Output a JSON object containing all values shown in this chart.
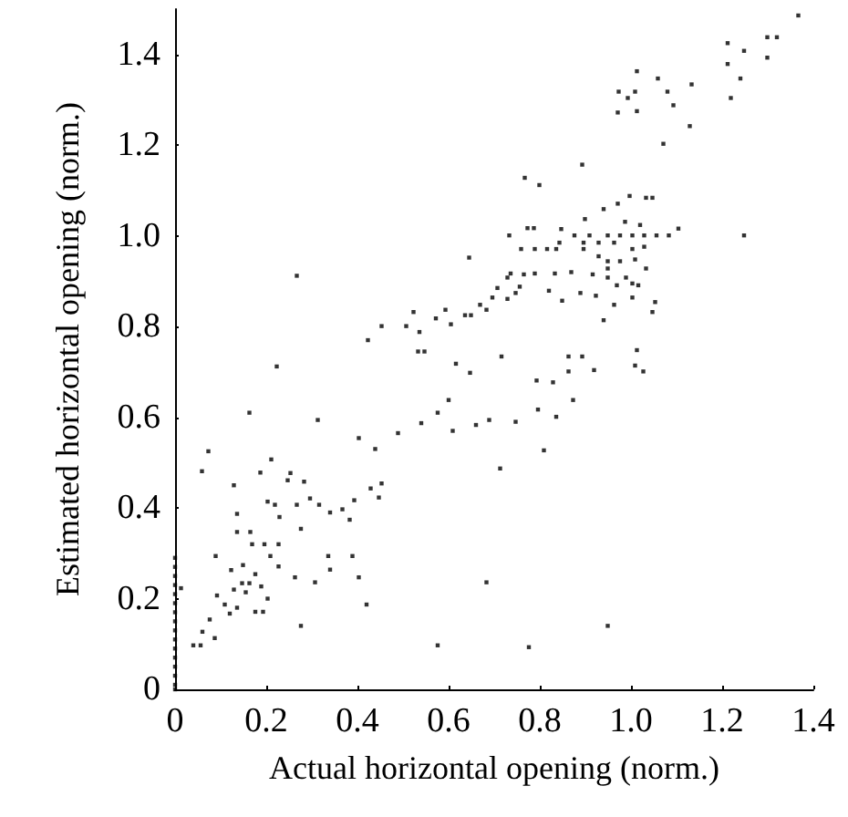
{
  "chart_data": {
    "type": "scatter",
    "xlabel": "Actual horizontal opening (norm.)",
    "ylabel": "Estimated horizontal opening (norm.)",
    "xlim": [
      0,
      1.4
    ],
    "ylim": [
      0,
      1.5
    ],
    "xticks": [
      0,
      0.2,
      0.4,
      0.6,
      0.8,
      {
        "value": 1,
        "label": "1.0"
      },
      1.2,
      1.4
    ],
    "yticks": [
      0,
      0.2,
      0.4,
      0.6,
      0.8,
      {
        "value": 1,
        "label": "1.0"
      },
      1.2,
      1.4
    ],
    "grid": false,
    "marker": "square",
    "series": [
      {
        "color": "#000000",
        "x": [
          1.367,
          1.299,
          1.32,
          1.212,
          1.248,
          1.212,
          1.299,
          1.24,
          1.219,
          1.013,
          1.059,
          0.973,
          0.993,
          1.009,
          1.08,
          0.971,
          1.013,
          1.093,
          1.133,
          1.129,
          1.071,
          0.893,
          0.767,
          0.799,
          0.997,
          1.033,
          1.047,
          0.971,
          0.94,
          0.899,
          0.987,
          1.02,
          1.104,
          1.083,
          1.248,
          0.733,
          0.773,
          0.787,
          0.876,
          0.909,
          0.949,
          0.976,
          1.003,
          1.029,
          1.056,
          0.843,
          0.896,
          0.929,
          0.963,
          0.789,
          0.759,
          0.816,
          0.836,
          0.896,
          1.003,
          1.029,
          0.929,
          0.949,
          0.976,
          1.009,
          1.033,
          0.949,
          0.869,
          0.916,
          0.949,
          0.989,
          1.003,
          0.969,
          1.016,
          0.889,
          0.923,
          1.003,
          1.053,
          0.963,
          1.047,
          0.94,
          1.013,
          1.027,
          1.009,
          0.919,
          0.863,
          0.893,
          0.863,
          0.829,
          0.793,
          0.716,
          0.647,
          0.616,
          0.6,
          0.609,
          0.576,
          0.54,
          0.489,
          0.403,
          0.439,
          0.453,
          0.429,
          0.447,
          0.393,
          0.383,
          0.367,
          0.34,
          0.336,
          0.34,
          0.389,
          0.403,
          0.42,
          0.276,
          0.263,
          0.307,
          0.276,
          0.313,
          0.223,
          0.267,
          0.423,
          0.453,
          0.523,
          0.507,
          0.536,
          0.533,
          0.547,
          0.572,
          0.593,
          0.605,
          0.645,
          0.636,
          0.649,
          0.669,
          0.683,
          0.696,
          0.707,
          0.729,
          0.736,
          0.729,
          0.747,
          0.756,
          0.765,
          0.789,
          0.82,
          0.833,
          0.849,
          0.847,
          0.683,
          0.776,
          0.949,
          0.576,
          0.809,
          0.713,
          0.747,
          0.796,
          0.836,
          0.873,
          0.689,
          0.66,
          0.073,
          0.059,
          0.163,
          0.129,
          0.211,
          0.187,
          0.253,
          0.247,
          0.283,
          0.203,
          0.229,
          0.219,
          0.267,
          0.296,
          0.316,
          0.136,
          0.165,
          0.169,
          0.196,
          0.227,
          0.209,
          0.136,
          0.089,
          0.227,
          0.123,
          0.149,
          0.163,
          0.147,
          0.176,
          0.189,
          0.129,
          0.155,
          0.203,
          0.176,
          0.193,
          0.109,
          0.092,
          0.12,
          0.136,
          0.076,
          0.06,
          0.087,
          0.04,
          0.056,
          0.013,
          0,
          0,
          0,
          0,
          0,
          0,
          0,
          0,
          0,
          0,
          0,
          0,
          0,
          0,
          0,
          0
        ],
        "values": [
          1.486,
          1.438,
          1.438,
          1.425,
          1.408,
          1.379,
          1.393,
          1.347,
          1.304,
          1.363,
          1.347,
          1.318,
          1.304,
          1.318,
          1.318,
          1.272,
          1.275,
          1.288,
          1.334,
          1.242,
          1.203,
          1.157,
          1.128,
          1.112,
          1.088,
          1.084,
          1.084,
          1.071,
          1.059,
          1.037,
          1.031,
          1.024,
          1.016,
          1.001,
          1.001,
          1.001,
          1.017,
          1.017,
          1.001,
          1.001,
          1.001,
          1.001,
          1.001,
          1.001,
          1.001,
          0.985,
          0.985,
          0.985,
          0.985,
          0.971,
          0.971,
          0.971,
          0.971,
          0.971,
          0.971,
          0.976,
          0.955,
          0.944,
          0.944,
          0.948,
          0.928,
          0.928,
          0.92,
          0.915,
          0.908,
          0.908,
          0.895,
          0.891,
          0.891,
          0.874,
          0.868,
          0.864,
          0.854,
          0.848,
          0.832,
          0.814,
          0.748,
          0.701,
          0.714,
          0.704,
          0.734,
          0.734,
          0.701,
          0.677,
          0.681,
          0.734,
          0.698,
          0.718,
          0.638,
          0.57,
          0.61,
          0.587,
          0.565,
          0.554,
          0.53,
          0.454,
          0.443,
          0.423,
          0.417,
          0.374,
          0.397,
          0.39,
          0.294,
          0.264,
          0.294,
          0.247,
          0.187,
          0.354,
          0.247,
          0.236,
          0.14,
          0.594,
          0.712,
          0.912,
          0.77,
          0.801,
          0.832,
          0.801,
          0.788,
          0.745,
          0.745,
          0.818,
          0.837,
          0.805,
          0.952,
          0.825,
          0.825,
          0.848,
          0.837,
          0.864,
          0.885,
          0.908,
          0.917,
          0.861,
          0.874,
          0.888,
          0.915,
          0.917,
          0.879,
          0.917,
          0.857,
          1.015,
          0.236,
          0.093,
          0.14,
          0.097,
          0.527,
          0.487,
          0.59,
          0.617,
          0.601,
          0.638,
          0.594,
          0.583,
          0.525,
          0.481,
          0.61,
          0.45,
          0.507,
          0.478,
          0.477,
          0.461,
          0.458,
          0.414,
          0.38,
          0.407,
          0.407,
          0.421,
          0.407,
          0.347,
          0.347,
          0.32,
          0.32,
          0.32,
          0.294,
          0.387,
          0.294,
          0.271,
          0.263,
          0.274,
          0.234,
          0.234,
          0.254,
          0.227,
          0.22,
          0.214,
          0.2,
          0.171,
          0.171,
          0.187,
          0.207,
          0.167,
          0.18,
          0.154,
          0.127,
          0.113,
          0.097,
          0.097,
          0.223,
          0.29,
          0.27,
          0.25,
          0.23,
          0.21,
          0.19,
          0.17,
          0.15,
          0.13,
          0.11,
          0.09,
          0.07,
          0.05,
          0.03,
          0.01,
          0
        ]
      }
    ]
  }
}
